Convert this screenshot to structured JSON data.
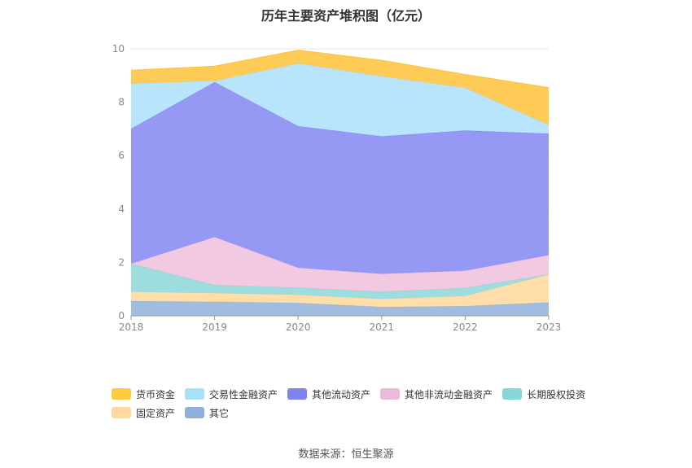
{
  "chart_data": {
    "type": "area",
    "stacked": true,
    "title": "历年主要资产堆积图（亿元）",
    "x": [
      "2018",
      "2019",
      "2020",
      "2021",
      "2022",
      "2023"
    ],
    "ylim": [
      0,
      10
    ],
    "yticks": [
      "0",
      "2",
      "4",
      "6",
      "8",
      "10"
    ],
    "grid": "horizontal",
    "legend_position": "bottom",
    "series": [
      {
        "name": "其它",
        "color": "#8fb0dc",
        "values": [
          0.55,
          0.52,
          0.48,
          0.33,
          0.36,
          0.5
        ]
      },
      {
        "name": "固定资产",
        "color": "#ffd89a",
        "values": [
          0.35,
          0.33,
          0.3,
          0.3,
          0.38,
          1.05
        ]
      },
      {
        "name": "长期股权投资",
        "color": "#8dd7d8",
        "values": [
          1.05,
          0.3,
          0.27,
          0.27,
          0.3,
          0.0
        ]
      },
      {
        "name": "其他非流动金融资产",
        "color": "#eebfdc",
        "values": [
          0.0,
          1.8,
          0.75,
          0.67,
          0.65,
          0.72
        ]
      },
      {
        "name": "其他流动资产",
        "color": "#8487f2",
        "values": [
          5.05,
          5.8,
          5.3,
          5.15,
          5.25,
          4.55
        ]
      },
      {
        "name": "交易性金融资产",
        "color": "#ace1fb",
        "values": [
          1.7,
          0.05,
          2.35,
          2.25,
          1.6,
          0.33
        ]
      },
      {
        "name": "货币资金",
        "color": "#ffc23a",
        "values": [
          0.5,
          0.55,
          0.5,
          0.6,
          0.5,
          1.4
        ]
      }
    ]
  },
  "legend": [
    {
      "label": "货币资金",
      "color": "#ffc940"
    },
    {
      "label": "交易性金融资产",
      "color": "#a8e1fc"
    },
    {
      "label": "其他流动资产",
      "color": "#7f83f0"
    },
    {
      "label": "其他非流动金融资产",
      "color": "#ecbadb"
    },
    {
      "label": "长期股权投资",
      "color": "#86d6d8"
    },
    {
      "label": "固定资产",
      "color": "#ffd99d"
    },
    {
      "label": "其它",
      "color": "#8fb0dc"
    }
  ],
  "source": "数据来源：恒生聚源"
}
